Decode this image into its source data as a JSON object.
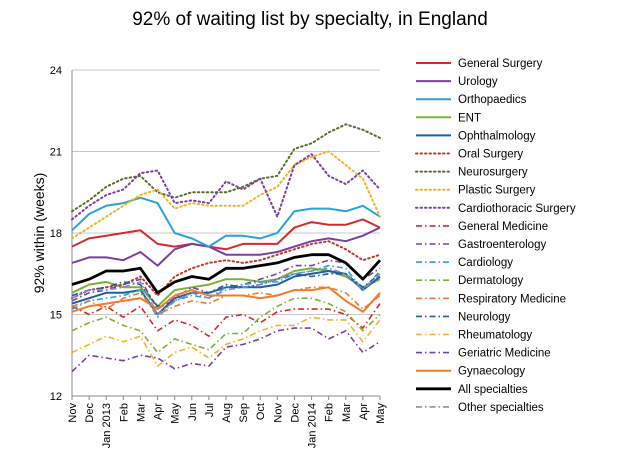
{
  "chart_data": {
    "type": "line",
    "title": "92% of waiting list by specialty, in England",
    "ylabel": "92% within (weeks)",
    "xlabel": "",
    "ylim": [
      12,
      24
    ],
    "yticks": [
      12,
      15,
      18,
      21,
      24
    ],
    "grid": true,
    "legend_position": "right",
    "x": [
      "Nov",
      "Dec",
      "Jan",
      "Feb",
      "Mar",
      "Apr",
      "May",
      "Jun",
      "Jul",
      "Aug",
      "Sep",
      "Oct",
      "Nov",
      "Dec",
      "Jan",
      "Feb",
      "Mar",
      "Apr",
      "May"
    ],
    "year_labels": [
      {
        "index": 2,
        "label": "Jan 2013"
      },
      {
        "index": 14,
        "label": "Jan 2014"
      }
    ],
    "series": [
      {
        "name": "General Surgery",
        "color": "#d42a2a",
        "style": "solid",
        "width": 2,
        "values": [
          17.5,
          17.8,
          17.9,
          18.0,
          18.1,
          17.6,
          17.5,
          17.6,
          17.5,
          17.4,
          17.6,
          17.6,
          17.6,
          18.2,
          18.4,
          18.3,
          18.3,
          18.5,
          18.2
        ]
      },
      {
        "name": "Urology",
        "color": "#7b3fa0",
        "style": "solid",
        "width": 2,
        "values": [
          16.9,
          17.1,
          17.1,
          17.0,
          17.3,
          16.8,
          17.4,
          17.6,
          17.5,
          17.2,
          17.2,
          17.2,
          17.3,
          17.5,
          17.7,
          17.8,
          17.7,
          17.9,
          18.2
        ]
      },
      {
        "name": "Orthopaedics",
        "color": "#29a3d6",
        "style": "solid",
        "width": 2,
        "values": [
          18.1,
          18.7,
          19.0,
          19.1,
          19.3,
          19.1,
          18.0,
          17.8,
          17.5,
          17.9,
          17.9,
          17.8,
          18.0,
          18.8,
          18.9,
          18.9,
          18.8,
          19.0,
          18.6
        ]
      },
      {
        "name": "ENT",
        "color": "#78b335",
        "style": "solid",
        "width": 2,
        "values": [
          15.8,
          16.1,
          16.2,
          16.0,
          16.0,
          15.3,
          15.9,
          16.0,
          16.1,
          16.3,
          16.3,
          16.2,
          16.3,
          16.6,
          16.7,
          16.6,
          16.4,
          16.0,
          16.3
        ]
      },
      {
        "name": "Ophthalmology",
        "color": "#1f5f9e",
        "style": "solid",
        "width": 2,
        "values": [
          15.4,
          15.6,
          15.8,
          15.8,
          15.9,
          15.0,
          15.6,
          15.8,
          15.8,
          16.0,
          16.0,
          16.0,
          16.1,
          16.4,
          16.5,
          16.6,
          16.5,
          15.9,
          16.4
        ]
      },
      {
        "name": "Oral Surgery",
        "color": "#c0392b",
        "style": "dotted",
        "width": 2,
        "values": [
          15.6,
          15.9,
          16.0,
          16.1,
          16.4,
          15.7,
          16.4,
          16.7,
          16.9,
          17.0,
          16.9,
          17.0,
          17.2,
          17.4,
          17.6,
          17.7,
          17.4,
          17.0,
          17.2
        ]
      },
      {
        "name": "Neurosurgery",
        "color": "#5a6b2a",
        "style": "dotted",
        "width": 2,
        "values": [
          18.8,
          19.2,
          19.7,
          20.0,
          20.1,
          19.5,
          19.3,
          19.5,
          19.5,
          19.5,
          19.7,
          20.0,
          20.1,
          21.1,
          21.3,
          21.7,
          22.0,
          21.8,
          21.5
        ]
      },
      {
        "name": "Plastic Surgery",
        "color": "#f4b224",
        "style": "dotted",
        "width": 2,
        "values": [
          17.8,
          18.2,
          18.6,
          19.0,
          19.4,
          19.6,
          18.9,
          19.1,
          19.0,
          19.0,
          19.0,
          19.4,
          19.7,
          20.5,
          20.8,
          21.0,
          20.5,
          20.0,
          18.6
        ]
      },
      {
        "name": "Cardiothoracic Surgery",
        "color": "#7b3fa0",
        "style": "dotted",
        "width": 2,
        "values": [
          18.5,
          19.0,
          19.4,
          19.6,
          20.2,
          20.3,
          19.1,
          19.2,
          19.1,
          19.9,
          19.6,
          20.0,
          18.6,
          20.5,
          20.9,
          20.1,
          19.8,
          20.3,
          19.6
        ]
      },
      {
        "name": "General Medicine",
        "color": "#d42a2a",
        "style": "dashdot",
        "width": 1.6,
        "values": [
          15.3,
          15.0,
          15.3,
          14.9,
          15.3,
          14.4,
          14.8,
          14.6,
          14.2,
          14.9,
          15.0,
          14.7,
          15.1,
          15.2,
          15.2,
          15.2,
          15.0,
          14.5,
          15.4
        ]
      },
      {
        "name": "Gastroenterology",
        "color": "#7b3fa0",
        "style": "dashdot",
        "width": 1.6,
        "values": [
          15.5,
          15.8,
          15.9,
          16.1,
          16.3,
          15.2,
          15.6,
          16.0,
          15.8,
          16.0,
          16.1,
          16.3,
          16.5,
          16.8,
          16.8,
          17.0,
          16.9,
          16.3,
          16.7
        ]
      },
      {
        "name": "Cardiology",
        "color": "#29a3d6",
        "style": "dashdot",
        "width": 1.6,
        "values": [
          15.2,
          15.5,
          15.6,
          15.7,
          15.9,
          14.9,
          15.5,
          15.7,
          15.6,
          16.0,
          16.1,
          16.2,
          16.2,
          16.5,
          16.6,
          16.8,
          16.7,
          15.9,
          16.6
        ]
      },
      {
        "name": "Dermatology",
        "color": "#78b335",
        "style": "dashdot",
        "width": 1.6,
        "values": [
          14.4,
          14.7,
          14.9,
          14.6,
          14.4,
          13.6,
          14.1,
          13.9,
          13.7,
          14.3,
          14.3,
          14.9,
          15.3,
          15.6,
          15.6,
          15.4,
          15.1,
          14.4,
          15.0
        ]
      },
      {
        "name": "Respiratory Medicine",
        "color": "#f07c2a",
        "style": "dashdot",
        "width": 1.6,
        "values": [
          15.3,
          15.5,
          15.2,
          15.6,
          15.8,
          15.0,
          15.3,
          15.5,
          15.4,
          15.7,
          15.7,
          15.8,
          15.7,
          15.9,
          16.0,
          16.0,
          15.8,
          15.2,
          15.7
        ]
      },
      {
        "name": "Neurology",
        "color": "#1f5f9e",
        "style": "dashdot",
        "width": 1.6,
        "values": [
          15.7,
          15.9,
          16.0,
          16.2,
          16.1,
          15.3,
          15.5,
          15.8,
          15.8,
          16.1,
          16.0,
          16.1,
          16.3,
          16.5,
          16.4,
          16.5,
          16.5,
          16.0,
          16.5
        ]
      },
      {
        "name": "Rheumatology",
        "color": "#f4b224",
        "style": "dashdot",
        "width": 1.6,
        "values": [
          13.6,
          13.9,
          14.2,
          14.0,
          14.2,
          13.1,
          13.6,
          13.8,
          13.4,
          13.9,
          14.1,
          14.4,
          14.6,
          14.6,
          14.9,
          14.8,
          14.8,
          14.0,
          14.8
        ]
      },
      {
        "name": "Geriatric Medicine",
        "color": "#7b3fa0",
        "style": "dashdot",
        "width": 1.6,
        "values": [
          12.9,
          13.5,
          13.4,
          13.3,
          13.5,
          13.4,
          13.0,
          13.2,
          13.1,
          13.8,
          13.9,
          14.1,
          14.4,
          14.5,
          14.5,
          14.1,
          14.4,
          13.6,
          14.0
        ]
      },
      {
        "name": "Gynaecology",
        "color": "#f07c2a",
        "style": "solid",
        "width": 2,
        "values": [
          15.1,
          15.3,
          15.4,
          15.5,
          15.6,
          15.2,
          15.7,
          15.9,
          15.7,
          15.7,
          15.7,
          15.6,
          15.7,
          15.9,
          15.9,
          16.0,
          15.5,
          15.1,
          15.8
        ]
      },
      {
        "name": "All specialties",
        "color": "#000000",
        "style": "solid",
        "width": 2.8,
        "values": [
          16.1,
          16.3,
          16.6,
          16.6,
          16.7,
          15.8,
          16.2,
          16.4,
          16.3,
          16.7,
          16.7,
          16.8,
          16.9,
          17.1,
          17.2,
          17.2,
          16.9,
          16.3,
          17.0
        ]
      },
      {
        "name": "Other specialties",
        "color": "#8a86c8",
        "style": "dashdot",
        "width": 1.6,
        "values": [
          15.6,
          15.9,
          15.9,
          16.0,
          16.2,
          15.0,
          15.5,
          15.8,
          15.6,
          15.9,
          16.0,
          16.1,
          16.3,
          16.5,
          16.6,
          16.7,
          16.5,
          15.9,
          16.5
        ]
      }
    ]
  }
}
